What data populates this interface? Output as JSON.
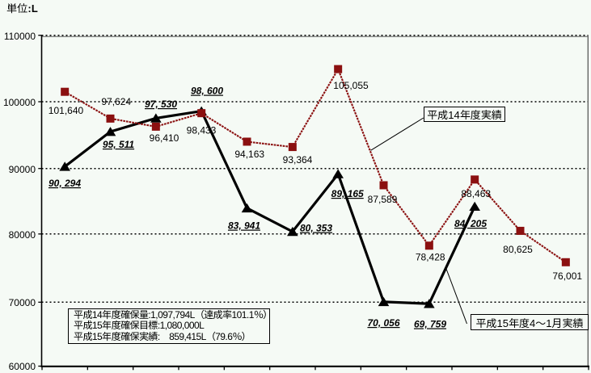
{
  "unit_label": "単位:L",
  "colors": {
    "background": "#f5faf5",
    "series1": "#8b1010",
    "series2": "#000000",
    "text": "#000000"
  },
  "y_axis": {
    "ticks": [
      "110000",
      "100000",
      "90000",
      "80000",
      "70000",
      "60000"
    ],
    "unit": "L"
  },
  "chart_data": {
    "type": "line",
    "title": "",
    "xlabel": "",
    "ylabel": "単位:L",
    "ylim": [
      60000,
      110000
    ],
    "ytick_step": 10000,
    "grid": "horizontal-dotted",
    "legend_position": "callout-boxes",
    "series": [
      {
        "name": "平成14年度実績",
        "marker": "square",
        "color": "#8b1010",
        "line_style": "dotted-thin",
        "values": [
          101640,
          97624,
          96410,
          98433,
          94163,
          93364,
          105055,
          87589,
          78428,
          88463,
          80625,
          76001
        ]
      },
      {
        "name": "平成15年度4～1月実績",
        "marker": "triangle",
        "color": "#000000",
        "line_style": "solid-thick",
        "values": [
          90294,
          95511,
          97530,
          98600,
          83941,
          80353,
          89165,
          70056,
          69759,
          84205
        ]
      }
    ]
  },
  "callouts": [
    {
      "label": "平成14年度実績"
    },
    {
      "label": "平成15年度4～1月実績"
    }
  ],
  "summary_box": {
    "lines": [
      "平成14年度確保量:1,097,794L（達成率101.1％）",
      "平成15年度確保目標:1,080,000L",
      "平成15年度確保実績:　859,415L（79.6％）"
    ]
  }
}
